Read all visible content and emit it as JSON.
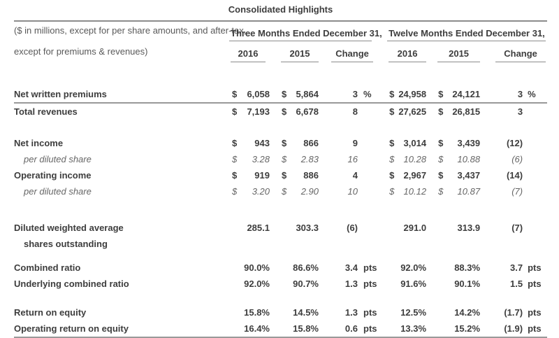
{
  "title": "Consolidated Highlights",
  "note_line1": "($ in millions, except for per share amounts, and after-tax,",
  "note_line2": "except for premiums & revenues)",
  "colors": {
    "text_dark": "#3d3d3d",
    "text_muted": "#595959",
    "rule_gray": "#8c8c8c",
    "background": "#ffffff"
  },
  "groups": [
    {
      "label": "Three Months Ended December 31,",
      "columns": [
        "2016",
        "2015",
        "Change"
      ]
    },
    {
      "label": "Twelve Months Ended December 31,",
      "columns": [
        "2016",
        "2015",
        "Change"
      ]
    }
  ],
  "rows": [
    {
      "type": "data",
      "style": "bold",
      "rule_below": true,
      "label": "Net written premiums",
      "cells": [
        "$",
        "6,058",
        "$",
        "5,864",
        "3",
        "%",
        "$",
        "24,958",
        "$",
        "24,121",
        "3",
        "%"
      ]
    },
    {
      "type": "data",
      "style": "bold",
      "label": "Total revenues",
      "cells": [
        "$",
        "7,193",
        "$",
        "6,678",
        "8",
        "",
        "$",
        "27,625",
        "$",
        "26,815",
        "3",
        ""
      ]
    },
    {
      "type": "spacer",
      "height": 22
    },
    {
      "type": "data",
      "style": "bold",
      "label": "Net income",
      "cells": [
        "$",
        "943",
        "$",
        "866",
        "9",
        "",
        "$",
        "3,014",
        "$",
        "3,439",
        "(12)",
        ""
      ]
    },
    {
      "type": "data",
      "style": "italic",
      "label": "per diluted share",
      "cells": [
        "$",
        "3.28",
        "$",
        "2.83",
        "16",
        "",
        "$",
        "10.28",
        "$",
        "10.88",
        "(6)",
        ""
      ]
    },
    {
      "type": "data",
      "style": "bold",
      "label": "Operating income",
      "cells": [
        "$",
        "919",
        "$",
        "886",
        "4",
        "",
        "$",
        "2,967",
        "$",
        "3,437",
        "(14)",
        ""
      ]
    },
    {
      "type": "data",
      "style": "italic",
      "label": "per diluted share",
      "cells": [
        "$",
        "3.20",
        "$",
        "2.90",
        "10",
        "",
        "$",
        "10.12",
        "$",
        "10.87",
        "(7)",
        ""
      ]
    },
    {
      "type": "spacer",
      "height": 29
    },
    {
      "type": "data",
      "style": "bold",
      "label": "Diluted weighted average",
      "label2": "shares outstanding",
      "cells": [
        "",
        "285.1",
        "",
        "303.3",
        "(6)",
        "",
        "",
        "291.0",
        "",
        "313.9",
        "(7)",
        ""
      ]
    },
    {
      "type": "spacer",
      "height": 11
    },
    {
      "type": "data",
      "style": "bold",
      "label": "Combined ratio",
      "cells": [
        "",
        "90.0%",
        "",
        "86.6%",
        "3.4",
        "pts",
        "",
        "92.0%",
        "",
        "88.3%",
        "3.7",
        "pts"
      ]
    },
    {
      "type": "data",
      "style": "bold",
      "label": "Underlying combined ratio",
      "cells": [
        "",
        "92.0%",
        "",
        "90.7%",
        "1.3",
        "pts",
        "",
        "91.6%",
        "",
        "90.1%",
        "1.5",
        "pts"
      ]
    },
    {
      "type": "spacer",
      "height": 18
    },
    {
      "type": "data",
      "style": "bold",
      "label": "Return on equity",
      "cells": [
        "",
        "15.8%",
        "",
        "14.5%",
        "1.3",
        "pts",
        "",
        "12.5%",
        "",
        "14.2%",
        "(1.7)",
        "pts"
      ]
    },
    {
      "type": "data",
      "style": "bold",
      "label": "Operating return on equity",
      "cells": [
        "",
        "16.4%",
        "",
        "15.8%",
        "0.6",
        "pts",
        "",
        "13.3%",
        "",
        "15.2%",
        "(1.9)",
        "pts"
      ]
    }
  ]
}
